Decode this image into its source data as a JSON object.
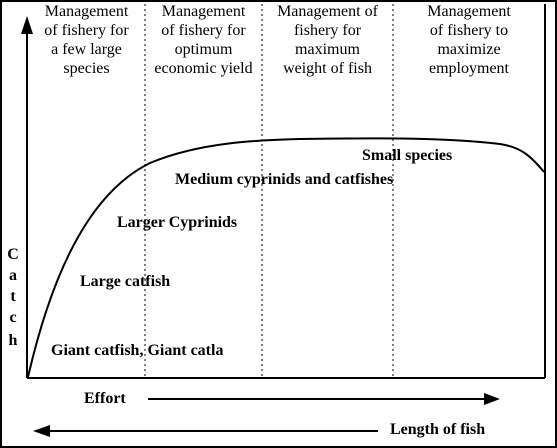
{
  "columns": [
    {
      "label": "Management of fishery for a few large species",
      "lines": [
        "Management",
        "of fishery for",
        "a few large",
        "species"
      ]
    },
    {
      "label": "Management of fishery for optimum economic yield",
      "lines": [
        "Management",
        "of fishery for",
        "optimum",
        "economic yield"
      ]
    },
    {
      "label": "Management of fishery for maximum weight of fish",
      "lines": [
        "Management of",
        "fishery for",
        "maximum",
        "weight of fish"
      ]
    },
    {
      "label": "Management of fishery to maximize employment",
      "lines": [
        "Management",
        "of fishery to",
        "maximize",
        "employment"
      ]
    }
  ],
  "species_labels": {
    "small": "Small species",
    "medium": "Medium cyprinids and catfishes",
    "larger": "Larger Cyprinids",
    "large": "Large catfish",
    "giant": "Giant catfish, Giant catla"
  },
  "y_axis": {
    "letters": [
      "C",
      "a",
      "t",
      "c",
      "h"
    ]
  },
  "x_axis": {
    "effort": "Effort",
    "length": "Length of fish"
  }
}
